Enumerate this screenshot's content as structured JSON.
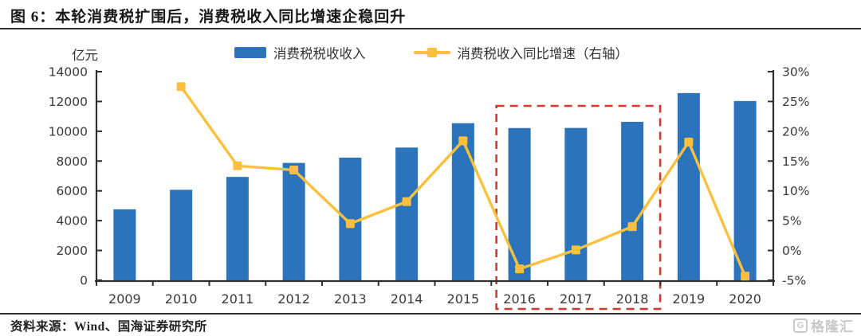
{
  "figure": {
    "title": "图 6：本轮消费税扩围后，消费税收入同比增速企稳回升"
  },
  "legend": {
    "bar_label": "消费税税收收入",
    "line_label": "消费税收入同比增速（右轴）"
  },
  "chart_data": {
    "type": "bar+line combo",
    "categories": [
      "2009",
      "2010",
      "2011",
      "2012",
      "2013",
      "2014",
      "2015",
      "2016",
      "2017",
      "2018",
      "2019",
      "2020"
    ],
    "series": [
      {
        "name": "消费税税收收入",
        "type": "bar",
        "axis": "left",
        "unit": "亿元",
        "values": [
          4761,
          6072,
          6936,
          7876,
          8231,
          8907,
          10542,
          10217,
          10225,
          10632,
          12562,
          12028
        ]
      },
      {
        "name": "消费税收入同比增速（右轴）",
        "type": "line",
        "axis": "right",
        "unit": "%",
        "values": [
          null,
          27.5,
          14.2,
          13.5,
          4.5,
          8.2,
          18.4,
          -3.1,
          0.1,
          4.0,
          18.2,
          -4.3
        ]
      }
    ],
    "left_axis": {
      "unit": "亿元",
      "min": 0,
      "max": 14000,
      "step": 2000,
      "tick_labels": [
        "0",
        "2000",
        "4000",
        "6000",
        "8000",
        "10000",
        "12000",
        "14000"
      ]
    },
    "right_axis": {
      "min": -5,
      "max": 30,
      "step": 5,
      "tick_labels": [
        "-5%",
        "0%",
        "5%",
        "10%",
        "15%",
        "20%",
        "25%",
        "30%"
      ]
    },
    "annotation_box": {
      "style": "red-dashed",
      "from_category": "2016",
      "to_category": "2018"
    },
    "grid": "off",
    "legend_position": "top"
  },
  "footer": {
    "source": "资料来源：Wind、国海证券研究所",
    "logo_icon": "G",
    "logo_text": "格隆汇"
  },
  "colors": {
    "bar": "#2B74BC",
    "line": "#FBC13E",
    "annotation": "#D0392C",
    "axis": "#2F2F2F",
    "tick_text": "#3A3A3A",
    "logo": "#C9C9C9"
  }
}
